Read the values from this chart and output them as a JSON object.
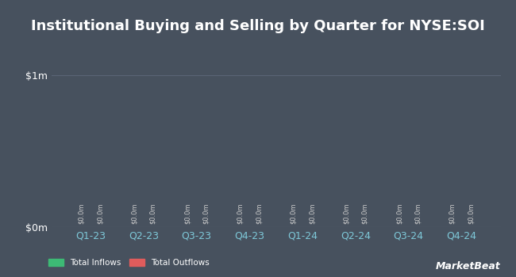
{
  "title": "Institutional Buying and Selling by Quarter for NYSE:SOI",
  "quarters": [
    "Q1-23",
    "Q2-23",
    "Q3-23",
    "Q4-23",
    "Q1-24",
    "Q2-24",
    "Q3-24",
    "Q4-24"
  ],
  "inflows": [
    0.0,
    0.0,
    0.0,
    0.0,
    0.0,
    0.0,
    0.0,
    0.0
  ],
  "outflows": [
    0.0,
    0.0,
    0.0,
    0.0,
    0.0,
    0.0,
    0.0,
    0.0
  ],
  "inflow_color": "#3dba75",
  "outflow_color": "#e05c5c",
  "background_color": "#47515e",
  "grid_color": "#5a6475",
  "text_color": "#ffffff",
  "xtick_color": "#7ec8d8",
  "bar_label_color": "#cccccc",
  "ylim": [
    0,
    1
  ],
  "yticks": [
    0,
    1
  ],
  "ytick_labels": [
    "$0m",
    "$1m"
  ],
  "legend_inflow": "Total Inflows",
  "legend_outflow": "Total Outflows",
  "bar_width": 0.35,
  "title_fontsize": 13,
  "tick_fontsize": 9,
  "xtick_fontsize": 9,
  "bar_label": "$0.0m",
  "marketbeat_text": "MarketBeat"
}
